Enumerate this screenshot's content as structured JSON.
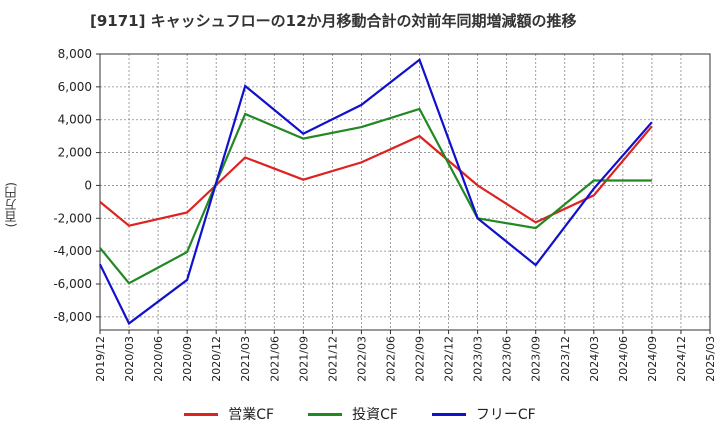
{
  "chart_data": {
    "type": "line",
    "title": "[9171]  キャッシュフローの12か月移動合計の対前年同期増減額の推移",
    "ylabel": "(百万円)",
    "xlabel": "",
    "categories": [
      "2019/12",
      "2020/03",
      "2020/06",
      "2020/09",
      "2020/12",
      "2021/03",
      "2021/06",
      "2021/09",
      "2021/12",
      "2022/03",
      "2022/06",
      "2022/09",
      "2022/12",
      "2023/03",
      "2023/06",
      "2023/09",
      "2023/12",
      "2024/03",
      "2024/06",
      "2024/09",
      "2024/12",
      "2025/03"
    ],
    "ylim": [
      -8800,
      8000
    ],
    "yticks": [
      8000,
      6000,
      4000,
      2000,
      0,
      -2000,
      -4000,
      -6000,
      -8000
    ],
    "ytick_labels": [
      "8,000",
      "6,000",
      "4,000",
      "2,000",
      "0",
      "-2,000",
      "-4,000",
      "-6,000",
      "-8,000"
    ],
    "grid": true,
    "legend_position": "bottom",
    "series": [
      {
        "name": "営業CF",
        "color": "#dd2222",
        "points": [
          [
            "2019/12",
            -1000
          ],
          [
            "2020/03",
            -2450
          ],
          [
            "2020/09",
            -1650
          ],
          [
            "2021/03",
            1700
          ],
          [
            "2021/09",
            350
          ],
          [
            "2022/03",
            1400
          ],
          [
            "2022/09",
            3000
          ],
          [
            "2023/03",
            0
          ],
          [
            "2023/09",
            -2250
          ],
          [
            "2024/03",
            -600
          ],
          [
            "2024/09",
            3600
          ]
        ]
      },
      {
        "name": "投資CF",
        "color": "#228822",
        "points": [
          [
            "2019/12",
            -3800
          ],
          [
            "2020/03",
            -5950
          ],
          [
            "2020/09",
            -4050
          ],
          [
            "2021/03",
            4350
          ],
          [
            "2021/09",
            2850
          ],
          [
            "2022/03",
            3550
          ],
          [
            "2022/09",
            4650
          ],
          [
            "2023/03",
            -2000
          ],
          [
            "2023/09",
            -2600
          ],
          [
            "2024/03",
            300
          ],
          [
            "2024/09",
            300
          ]
        ]
      },
      {
        "name": "フリーCF",
        "color": "#1111cc",
        "points": [
          [
            "2019/12",
            -4800
          ],
          [
            "2020/03",
            -8400
          ],
          [
            "2020/09",
            -5750
          ],
          [
            "2021/03",
            6050
          ],
          [
            "2021/09",
            3150
          ],
          [
            "2022/03",
            4900
          ],
          [
            "2022/09",
            7650
          ],
          [
            "2023/03",
            -2000
          ],
          [
            "2023/09",
            -4850
          ],
          [
            "2024/03",
            -200
          ],
          [
            "2024/09",
            3850
          ]
        ]
      }
    ]
  }
}
